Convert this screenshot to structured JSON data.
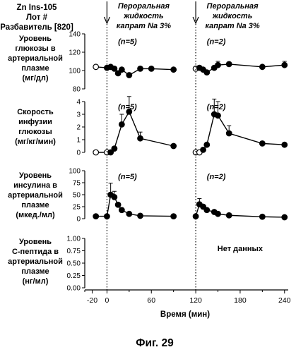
{
  "header": {
    "lines": [
      "Zn Ins-105",
      "Лот #",
      "Разбавитель [820]"
    ],
    "dose_label": "Пероральная жидкость капрат Na 3%",
    "dose_label_lines": [
      "Пероральная",
      "жидкость",
      "капрат Na 3%"
    ]
  },
  "figure_caption": "Фиг. 29",
  "chart_data": [
    {
      "type": "line",
      "panel": "glucose",
      "ylabel_lines": [
        "Уровень",
        "глюкозы в",
        "артериальной",
        "плазме",
        "(мг/дл)"
      ],
      "ylim": [
        80,
        140
      ],
      "yticks": [
        80,
        100,
        120,
        140
      ],
      "ytick_labels": [
        "80",
        "100",
        "120",
        "140"
      ],
      "xlim": [
        -30,
        245
      ],
      "annotations": [
        {
          "text": "(n=5)",
          "x": 15,
          "y": 132
        },
        {
          "text": "(n=2)",
          "x": 135,
          "y": 132
        }
      ],
      "segments": [
        {
          "x": [
            -15,
            0,
            5,
            10,
            15,
            20,
            30,
            45,
            60,
            90
          ],
          "y": [
            104,
            103,
            104,
            102,
            97,
            101,
            95,
            102,
            102,
            101
          ],
          "err": [
            2,
            1,
            2,
            2,
            2,
            2,
            2,
            2,
            2,
            2
          ],
          "open_first": 1
        },
        {
          "x": [
            120,
            125,
            130,
            135,
            145,
            150,
            165,
            210,
            240
          ],
          "y": [
            102,
            103,
            101,
            98,
            103,
            106,
            107,
            104,
            106
          ],
          "err": [
            2,
            2,
            2,
            2,
            2,
            4,
            2,
            2,
            4
          ],
          "open_first": 1
        }
      ]
    },
    {
      "type": "line",
      "panel": "gir",
      "ylabel_lines": [
        "Скорость",
        "инфузии",
        "глюкозы",
        "(мг/кг/мин)"
      ],
      "ylim": [
        0,
        4
      ],
      "yticks": [
        0,
        1,
        2,
        3,
        4
      ],
      "ytick_labels": [
        "0",
        "1",
        "2",
        "3",
        "4"
      ],
      "xlim": [
        -30,
        245
      ],
      "annotations": [
        {
          "text": "(n=5)",
          "x": 15,
          "y": 3.6
        },
        {
          "text": "(n=2)",
          "x": 135,
          "y": 3.6
        }
      ],
      "segments": [
        {
          "x": [
            -15,
            0,
            5,
            10,
            20,
            30,
            45,
            90
          ],
          "y": [
            0,
            0,
            0,
            0.3,
            2.2,
            3.2,
            1.1,
            0.5
          ],
          "err": [
            0,
            0,
            0,
            0,
            0.8,
            1.2,
            0.5,
            0
          ],
          "open_first": 2
        },
        {
          "x": [
            120,
            125,
            130,
            135,
            145,
            150,
            165,
            210,
            240
          ],
          "y": [
            0,
            0,
            0.2,
            0.6,
            3.0,
            2.9,
            1.5,
            0.7,
            0.6
          ],
          "err": [
            0,
            0,
            0,
            0,
            1.2,
            1.1,
            0.6,
            0,
            0
          ],
          "open_first": 2
        }
      ]
    },
    {
      "type": "line",
      "panel": "insulin",
      "ylabel_lines": [
        "Уровень",
        "инсулина в",
        "артериальной",
        "плазме",
        "(мкед./мл)"
      ],
      "ylim": [
        0,
        100
      ],
      "yticks": [
        0,
        25,
        50,
        75,
        100
      ],
      "ytick_labels": [
        "0",
        "25",
        "50",
        "75",
        "100"
      ],
      "xlim": [
        -30,
        245
      ],
      "annotations": [
        {
          "text": "(n=5)",
          "x": 15,
          "y": 88
        },
        {
          "text": "(n=2)",
          "x": 135,
          "y": 88
        }
      ],
      "segments": [
        {
          "x": [
            -15,
            0,
            5,
            10,
            15,
            20,
            30,
            45,
            90
          ],
          "y": [
            5,
            5,
            50,
            45,
            29,
            18,
            10,
            6,
            5
          ],
          "err": [
            0,
            0,
            24,
            12,
            0,
            0,
            0,
            0,
            0
          ],
          "open_first": 0
        },
        {
          "x": [
            120,
            125,
            130,
            135,
            145,
            150,
            165,
            210,
            240
          ],
          "y": [
            5,
            30,
            25,
            18,
            14,
            10,
            7,
            4,
            3
          ],
          "err": [
            0,
            12,
            0,
            0,
            0,
            0,
            0,
            0,
            0
          ],
          "open_first": 0
        }
      ]
    },
    {
      "type": "line",
      "panel": "cpeptide",
      "ylabel_lines": [
        "Уровень",
        "С-пептида в",
        "артериальной",
        "плазме",
        "(нг/мл)"
      ],
      "ylim": [
        0,
        1
      ],
      "yticks": [
        0,
        0.25,
        0.5,
        0.75,
        1
      ],
      "ytick_labels": [
        "0.00",
        "0.25",
        "0.50",
        "0.75",
        "1.00"
      ],
      "xlim": [
        -30,
        245
      ],
      "no_data_text": "Нет данных",
      "no_data_pos": {
        "x": 180,
        "y": 0.8
      },
      "xticks": [
        -20,
        0,
        60,
        120,
        180,
        240
      ],
      "xtick_labels": [
        "-20",
        "0",
        "60",
        "120",
        "180",
        "240"
      ],
      "xlabel": "Время (мин)",
      "segments": []
    }
  ],
  "dose_times": [
    0,
    120
  ]
}
